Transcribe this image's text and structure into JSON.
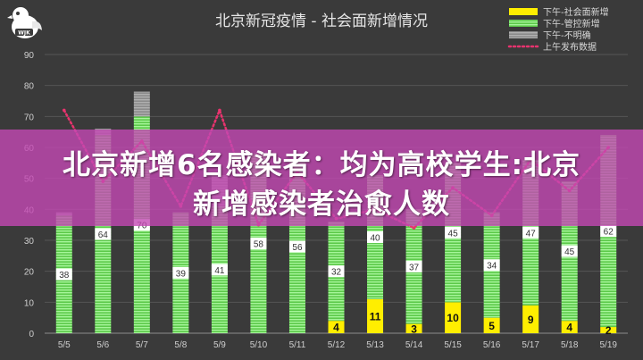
{
  "logo": {
    "text": "WJK"
  },
  "headline": {
    "line1": "北京新增6名感染者：均为高校学生:北京",
    "line2": "新增感染者治愈人数"
  },
  "chart_data": {
    "type": "bar",
    "title": "北京新冠疫情 - 社会面新增情况",
    "categories": [
      "5/5",
      "5/6",
      "5/7",
      "5/8",
      "5/9",
      "5/10",
      "5/11",
      "5/12",
      "5/13",
      "5/14",
      "5/15",
      "5/16",
      "5/17",
      "5/18",
      "5/19"
    ],
    "ylim": [
      0,
      90
    ],
    "yticks": [
      0,
      10,
      20,
      30,
      40,
      50,
      60,
      70,
      80,
      90
    ],
    "grid": true,
    "legend_position": "top-right",
    "series": [
      {
        "name": "下午-社会面新增",
        "kind": "bar",
        "color": "#ffee00",
        "values": [
          0,
          0,
          0,
          0,
          0,
          0,
          0,
          4,
          11,
          3,
          10,
          5,
          9,
          4,
          2
        ],
        "labels": [
          "",
          "",
          "",
          "",
          "",
          "",
          "",
          "4",
          "11",
          "3",
          "10",
          "5",
          "9",
          "4",
          "2"
        ]
      },
      {
        "name": "下午-管控新增",
        "kind": "bar",
        "color": "#6fe05c",
        "values": [
          38,
          64,
          70,
          39,
          41,
          58,
          56,
          32,
          40,
          37,
          45,
          34,
          47,
          45,
          62
        ],
        "labels": [
          "38",
          "64",
          "70",
          "39",
          "41",
          "58",
          "56",
          "32",
          "40",
          "37",
          "45",
          "34",
          "47",
          "45",
          "62"
        ]
      },
      {
        "name": "下午-不明确",
        "kind": "bar",
        "color": "#8a8a8a",
        "values": [
          1,
          2,
          8,
          0,
          10,
          0,
          0,
          0,
          0,
          0,
          0,
          0,
          0,
          0,
          0
        ]
      },
      {
        "name": "上午发布数据",
        "kind": "line",
        "color": "#e8336e",
        "values": [
          72,
          49,
          62,
          41,
          72,
          35,
          52,
          37,
          40,
          34,
          47,
          38,
          56,
          46,
          60
        ]
      }
    ]
  }
}
